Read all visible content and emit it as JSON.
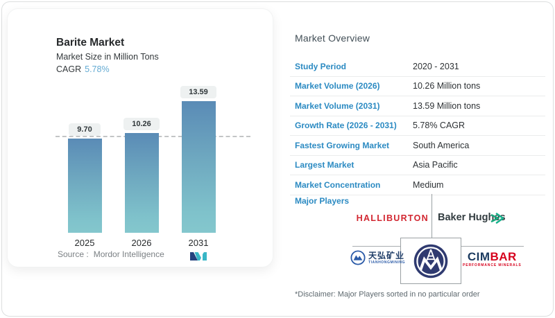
{
  "chart_data": {
    "type": "bar",
    "title": "Barite Market",
    "subtitle": "Market Size in Million Tons",
    "cagr_label": "CAGR",
    "cagr_value": "5.78%",
    "categories": [
      "2025",
      "2026",
      "2031"
    ],
    "values": [
      9.7,
      10.26,
      13.59
    ],
    "value_labels": [
      "9.70",
      "10.26",
      "13.59"
    ],
    "ylabel": "Million Tons",
    "ylim": [
      0,
      15
    ],
    "grid": false,
    "legend_position": "none",
    "baseline_dashed_at": 9.7,
    "bar_gradient": [
      "#5a8bb6",
      "#84c7cd"
    ]
  },
  "left_card": {
    "source_label": "Source :",
    "source_value": "Mordor Intelligence",
    "logo": "mordor-intelligence-mark"
  },
  "overview": {
    "heading": "Market Overview",
    "rows": [
      {
        "label": "Study Period",
        "value": "2020 - 2031"
      },
      {
        "label": "Market Volume (2026)",
        "value": "10.26 Million tons"
      },
      {
        "label": "Market Volume (2031)",
        "value": "13.59 Million tons"
      },
      {
        "label": "Growth Rate (2026 - 2031)",
        "value": "5.78% CAGR"
      },
      {
        "label": "Fastest Growing Market",
        "value": "South America"
      },
      {
        "label": "Largest Market",
        "value": "Asia Pacific"
      },
      {
        "label": "Market Concentration",
        "value": "Medium"
      }
    ],
    "major_players": {
      "label": "Major Players",
      "halliburton": "HALLIBURTON",
      "baker_hughes": "Baker Hughes",
      "tianhong": {
        "chinese": "天弘矿业",
        "caption": "TIANHONGMINING"
      },
      "cimbar": {
        "part1": "CIM",
        "part2": "BAR",
        "caption": "PERFORMANCE MINERALS"
      }
    },
    "disclaimer": "*Disclaimer: Major Players sorted in no particular order"
  },
  "colors": {
    "label_blue": "#2b8ac2",
    "cagr_blue": "#64abd3",
    "bar_top": "#5a8bb6",
    "bar_bottom": "#84c7cd",
    "halliburton_red": "#d22630",
    "baker_hughes_green": "#1aa97e",
    "cimbar_navy": "#1b3a5f",
    "cimbar_red": "#d6001c",
    "emblem_navy": "#2f3a70",
    "mordor_navy": "#24417e",
    "mordor_teal": "#38b6c6"
  }
}
